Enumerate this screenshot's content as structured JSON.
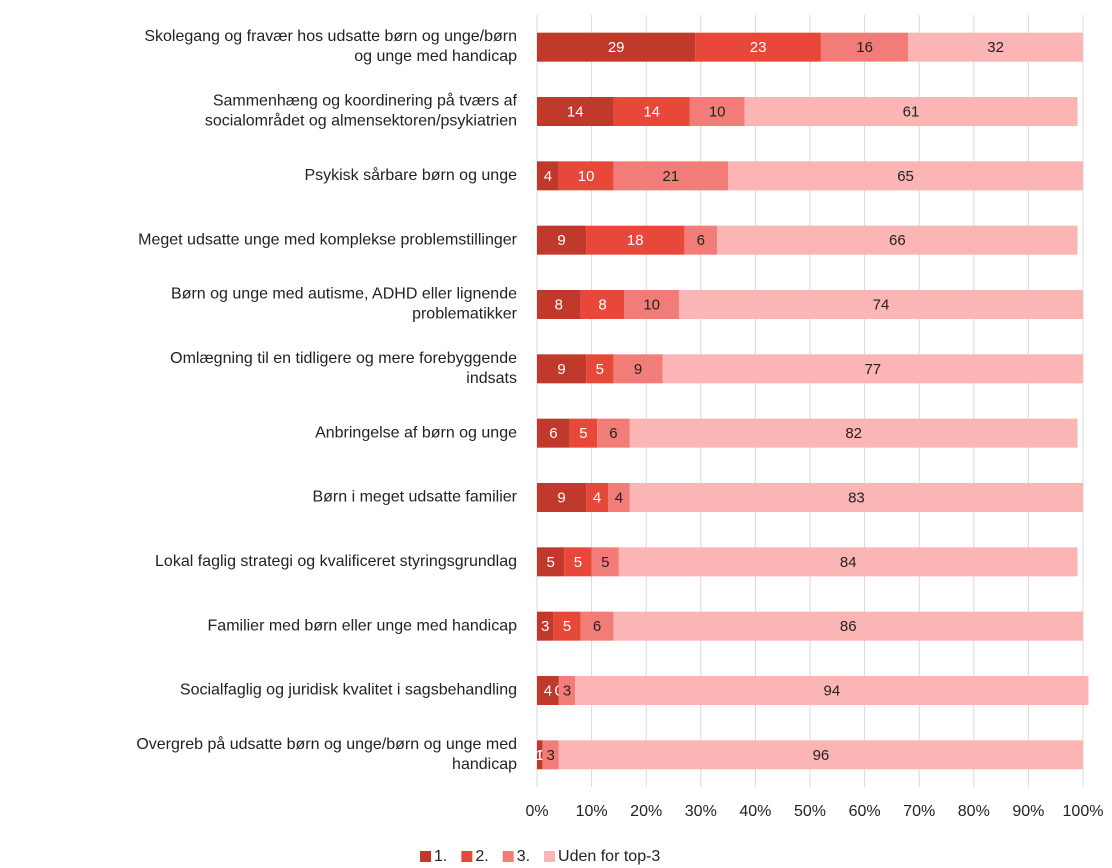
{
  "chart_data": {
    "type": "stacked-bar-horizontal",
    "categories": [
      "Skolegang og fravær hos udsatte børn og unge/børn\nog unge med handicap",
      "Sammenhæng og koordinering på tværs af\nsocialområdet og almensektoren/psykiatrien",
      "Psykisk sårbare børn og unge",
      "Meget udsatte unge med komplekse problemstillinger",
      "Børn og unge med autisme, ADHD eller lignende\nproblematikker",
      "Omlægning til en tidligere og mere forebyggende\nindsats",
      "Anbringelse af børn og unge",
      "Børn i meget udsatte familier",
      "Lokal faglig strategi og kvalificeret styringsgrundlag",
      "Familier med børn eller unge med handicap",
      "Socialfaglig og juridisk kvalitet i sagsbehandling",
      "Overgreb på udsatte børn og unge/børn og unge med\nhandicap"
    ],
    "series": [
      {
        "name": "1.",
        "color": "#c0392b",
        "values": [
          29,
          14,
          4,
          9,
          8,
          9,
          6,
          9,
          5,
          3,
          4,
          1
        ]
      },
      {
        "name": "2.",
        "color": "#e8483a",
        "values": [
          23,
          14,
          10,
          18,
          8,
          5,
          5,
          4,
          5,
          5,
          0,
          0
        ]
      },
      {
        "name": "3.",
        "color": "#f27d78",
        "values": [
          16,
          10,
          21,
          6,
          10,
          9,
          6,
          4,
          5,
          6,
          3,
          3
        ]
      },
      {
        "name": "Uden for top-3",
        "color": "#fbb5b4",
        "values": [
          32,
          61,
          65,
          66,
          74,
          77,
          82,
          83,
          84,
          86,
          94,
          96
        ]
      }
    ],
    "xlim": [
      0,
      100
    ],
    "xticks": [
      {
        "value": 0,
        "label": "0%"
      },
      {
        "value": 10,
        "label": "10%"
      },
      {
        "value": 20,
        "label": "20%"
      },
      {
        "value": 30,
        "label": "30%"
      },
      {
        "value": 40,
        "label": "40%"
      },
      {
        "value": 50,
        "label": "50%"
      },
      {
        "value": 60,
        "label": "60%"
      },
      {
        "value": 70,
        "label": "70%"
      },
      {
        "value": 80,
        "label": "80%"
      },
      {
        "value": 90,
        "label": "90%"
      },
      {
        "value": 100,
        "label": "100%"
      }
    ],
    "grid": true,
    "legend": "bottom"
  }
}
